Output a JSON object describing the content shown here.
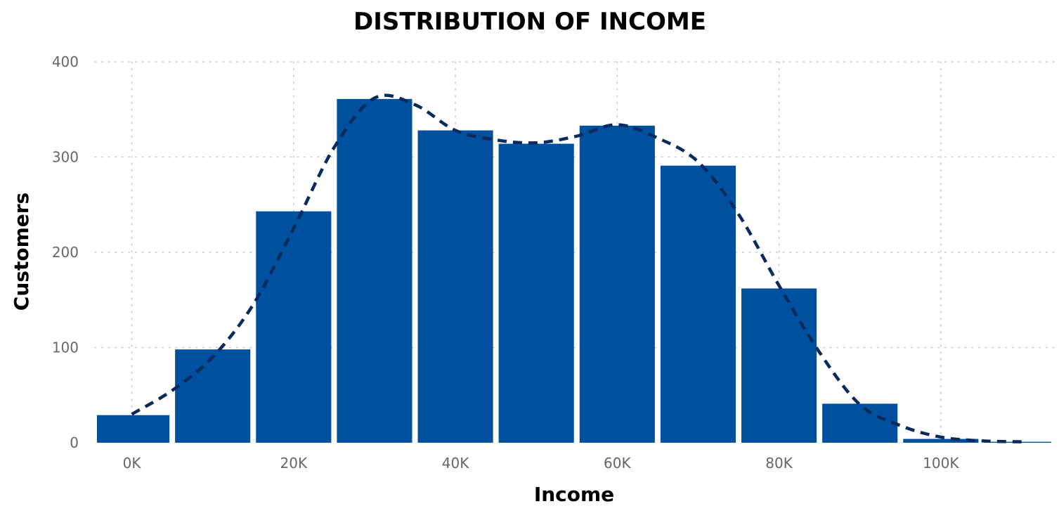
{
  "chart_data": {
    "type": "bar",
    "title": "DISTRIBUTION OF INCOME",
    "xlabel": "Income",
    "ylabel": "Customers",
    "bin_width": 10000,
    "x_ticks": [
      0,
      20000,
      40000,
      60000,
      80000,
      100000
    ],
    "x_tick_labels": [
      "0K",
      "20K",
      "40K",
      "60K",
      "80K",
      "100K"
    ],
    "xlim": [
      -5000,
      114000
    ],
    "y_ticks": [
      0,
      100,
      200,
      300,
      400
    ],
    "y_tick_labels": [
      "0",
      "100",
      "200",
      "300",
      "400"
    ],
    "ylim": [
      0,
      400
    ],
    "grid": true,
    "bins": [
      {
        "x": 0,
        "value": 29
      },
      {
        "x": 10000,
        "value": 98
      },
      {
        "x": 20000,
        "value": 243
      },
      {
        "x": 30000,
        "value": 361
      },
      {
        "x": 40000,
        "value": 328
      },
      {
        "x": 50000,
        "value": 314
      },
      {
        "x": 60000,
        "value": 333
      },
      {
        "x": 70000,
        "value": 291
      },
      {
        "x": 80000,
        "value": 162
      },
      {
        "x": 90000,
        "value": 41
      },
      {
        "x": 100000,
        "value": 4
      },
      {
        "x": 110000,
        "value": 1
      }
    ],
    "trend_line": {
      "style": "dashed",
      "points": [
        [
          0,
          30
        ],
        [
          5000,
          55
        ],
        [
          10000,
          90
        ],
        [
          15000,
          145
        ],
        [
          20000,
          225
        ],
        [
          25000,
          310
        ],
        [
          30000,
          362
        ],
        [
          35000,
          355
        ],
        [
          40000,
          328
        ],
        [
          45000,
          318
        ],
        [
          50000,
          315
        ],
        [
          55000,
          322
        ],
        [
          60000,
          334
        ],
        [
          65000,
          320
        ],
        [
          70000,
          295
        ],
        [
          75000,
          240
        ],
        [
          80000,
          165
        ],
        [
          85000,
          95
        ],
        [
          90000,
          40
        ],
        [
          95000,
          18
        ],
        [
          100000,
          6
        ],
        [
          105000,
          2
        ],
        [
          110000,
          1
        ]
      ]
    },
    "colors": {
      "bar": "#0050A0",
      "trend_line": "#0A2A5C",
      "grid": "#C8C8C8",
      "tick_label": "#666666",
      "title": "#000000"
    }
  }
}
